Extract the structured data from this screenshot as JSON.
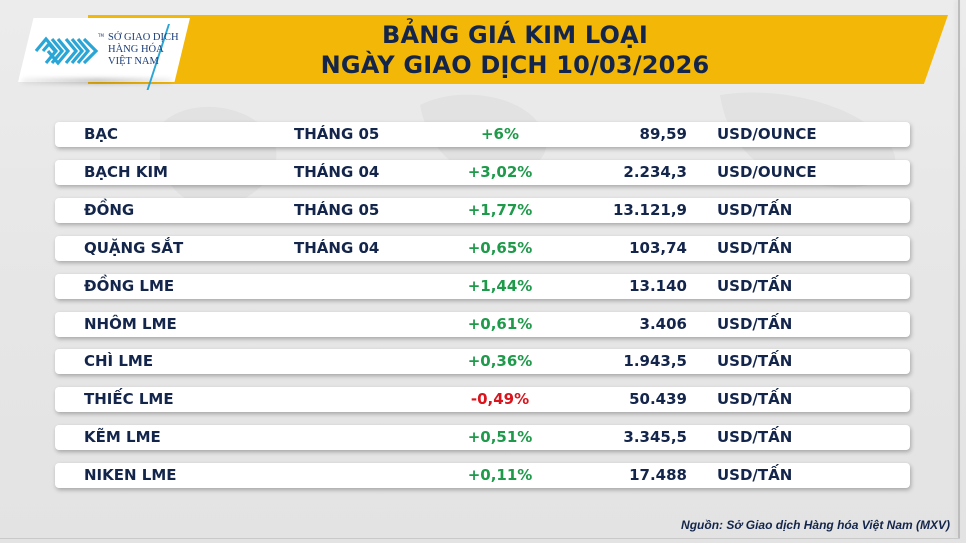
{
  "header": {
    "title_line1": "BẢNG GIÁ KIM LOẠI",
    "title_line2": "NGÀY GIAO DỊCH 10/03/2026",
    "banner_color": "#f3b707",
    "logo": {
      "icon": "mxv-logo-icon",
      "line1": "SỞ GIAO DỊCH",
      "line2": "HÀNG HÓA",
      "line3": "VIỆT NAM",
      "tm": "TM"
    }
  },
  "colors": {
    "text": "#13254a",
    "up": "#1f9a4b",
    "down": "#d9141c"
  },
  "table": {
    "rows": [
      {
        "name": "BẠC",
        "month": "THÁNG 05",
        "change": "+6%",
        "direction": "up",
        "price": "89,59",
        "unit": "USD/OUNCE"
      },
      {
        "name": "BẠCH KIM",
        "month": "THÁNG 04",
        "change": "+3,02%",
        "direction": "up",
        "price": "2.234,3",
        "unit": "USD/OUNCE"
      },
      {
        "name": "ĐỒNG",
        "month": "THÁNG 05",
        "change": "+1,77%",
        "direction": "up",
        "price": "13.121,9",
        "unit": "USD/TẤN"
      },
      {
        "name": "QUẶNG SẮT",
        "month": "THÁNG 04",
        "change": "+0,65%",
        "direction": "up",
        "price": "103,74",
        "unit": "USD/TẤN"
      },
      {
        "name": "ĐỒNG LME",
        "month": "",
        "change": "+1,44%",
        "direction": "up",
        "price": "13.140",
        "unit": "USD/TẤN"
      },
      {
        "name": "NHÔM LME",
        "month": "",
        "change": "+0,61%",
        "direction": "up",
        "price": "3.406",
        "unit": "USD/TẤN"
      },
      {
        "name": "CHÌ LME",
        "month": "",
        "change": "+0,36%",
        "direction": "up",
        "price": "1.943,5",
        "unit": "USD/TẤN"
      },
      {
        "name": "THIẾC LME",
        "month": "",
        "change": "-0,49%",
        "direction": "down",
        "price": "50.439",
        "unit": "USD/TẤN"
      },
      {
        "name": "KẼM LME",
        "month": "",
        "change": "+0,51%",
        "direction": "up",
        "price": "3.345,5",
        "unit": "USD/TẤN"
      },
      {
        "name": "NIKEN LME",
        "month": "",
        "change": "+0,11%",
        "direction": "up",
        "price": "17.488",
        "unit": "USD/TẤN"
      }
    ]
  },
  "footer": {
    "source": "Nguồn: Sở Giao dịch Hàng hóa Việt Nam (MXV)"
  }
}
